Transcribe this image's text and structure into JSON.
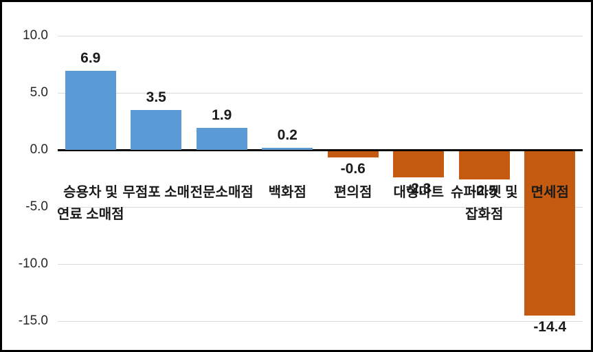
{
  "chart_data": {
    "type": "bar",
    "title": "",
    "xlabel": "",
    "ylabel": "",
    "categories": [
      "승용차 및 연료 소매점",
      "무점포 소매",
      "전문소매점",
      "백화점",
      "편의점",
      "대형마트",
      "슈퍼마켓 및 잡화점",
      "면세점"
    ],
    "category_lines": [
      [
        "승용차 및",
        "연료 소매점"
      ],
      [
        "무점포 소매"
      ],
      [
        "전문소매점"
      ],
      [
        "백화점"
      ],
      [
        "편의점"
      ],
      [
        "대형마트"
      ],
      [
        "슈퍼마켓 및",
        "잡화점"
      ],
      [
        "면세점"
      ]
    ],
    "values": [
      6.9,
      3.5,
      1.9,
      0.2,
      -0.6,
      -2.3,
      -2.5,
      -14.4
    ],
    "data_labels": [
      "6.9",
      "3.5",
      "1.9",
      "0.2",
      "-0.6",
      "-2.3",
      "-2.5",
      "-14.4"
    ],
    "y_ticks": [
      10.0,
      5.0,
      0.0,
      -5.0,
      -10.0,
      -15.0
    ],
    "y_tick_labels": [
      "10.0",
      "5.0",
      "0.0",
      "-5.0",
      "-10.0",
      "-15.0"
    ],
    "ylim": [
      -15,
      10
    ],
    "grid": true,
    "legend": "none",
    "colors": {
      "positive_bar": "#5B9BD5",
      "negative_bar": "#C55A11",
      "gridline": "#D9D9D9",
      "zero_axis": "#000000",
      "label_text": "#1A1A1A",
      "tick_text": "#262626",
      "frame_border": "#000000",
      "background": "#FFFFFF"
    }
  }
}
